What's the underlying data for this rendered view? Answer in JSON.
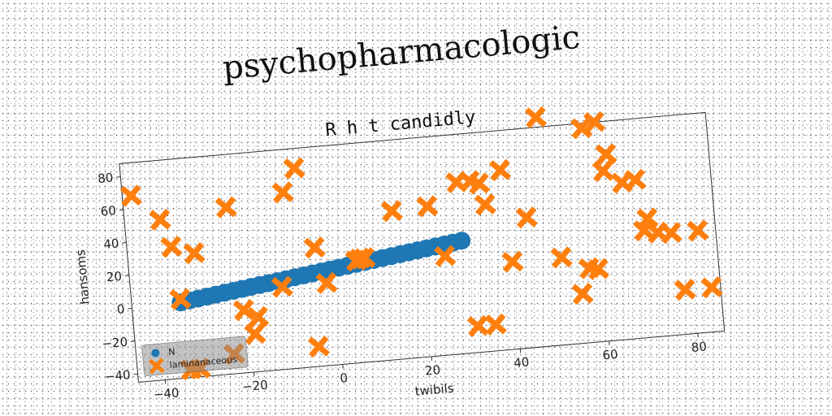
{
  "chart_data": {
    "type": "scatter",
    "title": "psychopharmacologic",
    "subtitle": "R h t candidly",
    "xlabel": "twibils",
    "ylabel": "hansoms",
    "xlim": [
      -46,
      86
    ],
    "ylim": [
      -45,
      88
    ],
    "xticks": [
      -40,
      -20,
      0,
      20,
      40,
      60,
      80
    ],
    "yticks": [
      -40,
      -20,
      0,
      20,
      40,
      60,
      80
    ],
    "grid": false,
    "legend_position": "lower-left",
    "series": [
      {
        "name": "N",
        "marker": "circle",
        "color": "#1f77b4",
        "x": [
          -35,
          -33,
          -31,
          -29,
          -27,
          -25,
          -23,
          -21,
          -19,
          -17,
          -15,
          -13,
          -11,
          -9,
          -7,
          -5,
          -3,
          -1,
          1,
          3,
          5,
          7,
          9,
          11,
          13,
          15,
          17,
          19,
          21,
          23,
          25,
          27,
          29
        ],
        "y": [
          1.0,
          1.7,
          2.4,
          3.1,
          3.8,
          4.5,
          5.2,
          5.9,
          6.6,
          7.3,
          8.0,
          8.7,
          9.4,
          10.1,
          10.8,
          11.5,
          12.2,
          12.9,
          13.6,
          14.3,
          15.0,
          15.7,
          16.4,
          17.1,
          17.8,
          18.5,
          19.2,
          19.9,
          20.6,
          21.3,
          22.0,
          22.7,
          23.4
        ]
      },
      {
        "name": "laminanaceous",
        "marker": "x",
        "color": "#ff7f0e",
        "x": [
          -44,
          -38,
          -36,
          -35,
          -34,
          -32,
          -31,
          -24,
          -23,
          -21,
          -19,
          -18,
          -12,
          -10,
          -7,
          -5,
          -4,
          -2,
          5,
          6,
          7,
          14,
          22,
          25,
          29,
          31,
          32,
          34,
          35,
          35,
          39,
          40,
          44,
          48,
          51,
          55,
          57,
          58,
          59,
          61,
          62,
          63,
          66,
          69,
          70,
          71,
          73,
          76,
          78,
          82,
          84
        ],
        "y": [
          68,
          52,
          35,
          3,
          -40,
          -40,
          30,
          -33,
          56,
          -7,
          -22,
          -12,
          5,
          62,
          76,
          -33,
          27,
          5,
          17,
          18,
          18,
          45,
          46,
          15,
          59,
          -29,
          59,
          57,
          44,
          -29,
          64,
          8,
          34,
          94,
          8,
          -15,
          0,
          85,
          -1,
          88,
          58,
          68,
          50,
          51,
          20,
          27,
          18,
          17,
          -18,
          17,
          -18
        ]
      }
    ]
  }
}
